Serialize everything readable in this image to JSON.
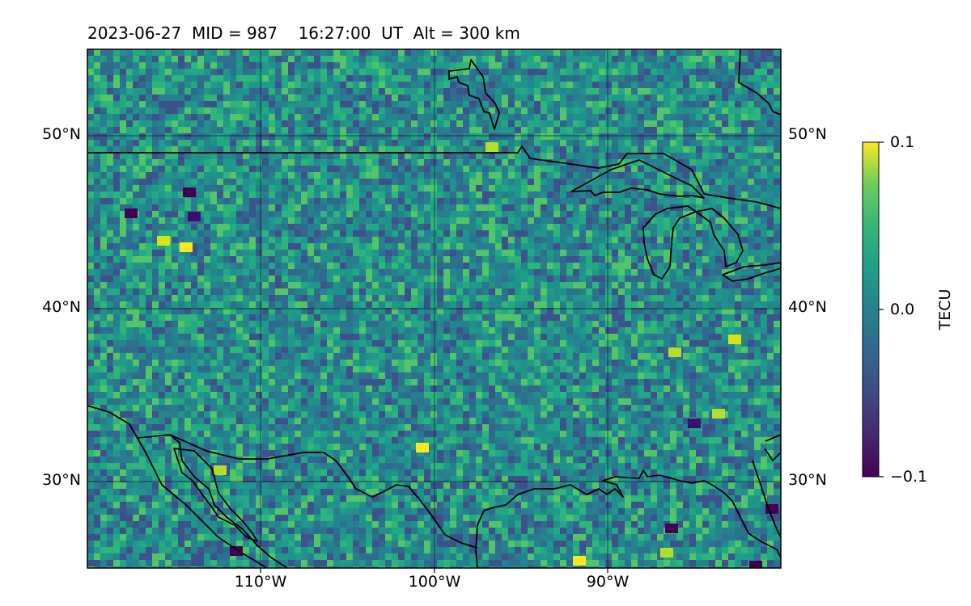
{
  "title": "2023-06-27  MID = 987    16:27:00  UT  Alt = 300 km",
  "map": {
    "projection": "plate-carree",
    "lon_range": [
      -120,
      -80
    ],
    "lat_range": [
      25,
      55
    ],
    "gridlines": true,
    "lat_labels": [
      "50°N",
      "40°N",
      "30°N"
    ],
    "lat_values": [
      50,
      40,
      30
    ],
    "lon_labels": [
      "110°W",
      "100°W",
      "90°W"
    ],
    "lon_values": [
      -110,
      -100,
      -90
    ],
    "field": "TEC perturbation",
    "colormap": "viridis"
  },
  "colorbar": {
    "label": "TECU",
    "ticks": [
      "0.1",
      "0.0",
      "−0.1"
    ],
    "tick_values": [
      0.1,
      0.0,
      -0.1
    ],
    "vmin": -0.1,
    "vmax": 0.1
  }
}
